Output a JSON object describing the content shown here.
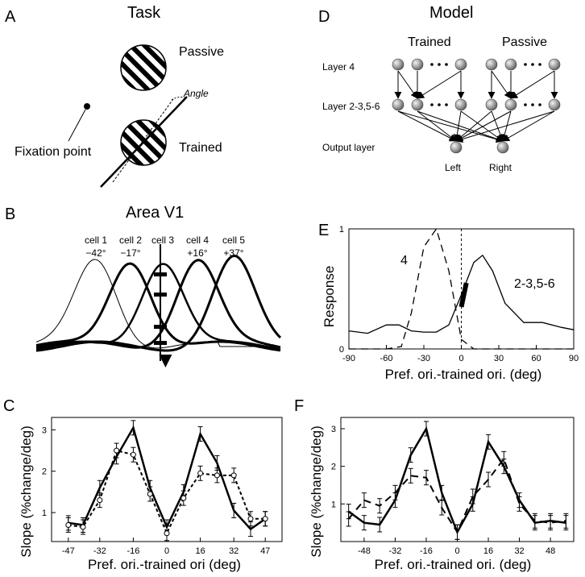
{
  "panels": {
    "A": {
      "letter": "A",
      "title": "Task",
      "passive": "Passive",
      "trained": "Trained",
      "angle": "Angle",
      "fixation": "Fixation point"
    },
    "B": {
      "letter": "B",
      "title": "Area V1",
      "cells": [
        {
          "name": "cell 1",
          "angle": "−42°"
        },
        {
          "name": "cell 2",
          "angle": "−17°"
        },
        {
          "name": "cell 3",
          "angle": ""
        },
        {
          "name": "cell 4",
          "angle": "+16°"
        },
        {
          "name": "cell 5",
          "angle": "+37°"
        }
      ]
    },
    "D": {
      "letter": "D",
      "title": "Model",
      "trained": "Trained",
      "passive": "Passive",
      "layer4": "Layer 4",
      "layer23": "Layer 2-3,5-6",
      "output": "Output layer",
      "left": "Left",
      "right": "Right"
    },
    "E": {
      "letter": "E",
      "ylabel": "Response",
      "xlabel": "Pref. ori.-trained ori. (deg)",
      "curve4": "4",
      "curve23": "2-3,5-6"
    },
    "C": {
      "letter": "C",
      "ylabel": "Slope (%change/deg)",
      "xlabel": "Pref. ori.-trained ori (deg)"
    },
    "F": {
      "letter": "F",
      "ylabel": "Slope (%change/deg)",
      "xlabel": "Pref. ori.-trained ori. (deg)"
    }
  },
  "chart_data": [
    {
      "type": "line",
      "panel": "E",
      "xlim": [
        -90,
        90
      ],
      "ylim": [
        0,
        1
      ],
      "xticks": [
        "-90",
        "-60",
        "-30",
        "0",
        "30",
        "60",
        "90"
      ],
      "yticks": [
        "0",
        "1"
      ],
      "series": [
        {
          "name": "4",
          "style": "dashed",
          "x": [
            -90,
            -60,
            -48,
            -40,
            -30,
            -20,
            -10,
            0,
            10,
            20,
            90
          ],
          "y": [
            0,
            0,
            0.02,
            0.3,
            0.85,
            1.0,
            0.65,
            0.08,
            0,
            0,
            0
          ]
        },
        {
          "name": "2-3,5-6",
          "style": "solid",
          "x": [
            -90,
            -75,
            -60,
            -50,
            -40,
            -30,
            -20,
            -10,
            0,
            10,
            17,
            25,
            35,
            50,
            65,
            80,
            90
          ],
          "y": [
            0.15,
            0.13,
            0.2,
            0.2,
            0.15,
            0.14,
            0.14,
            0.2,
            0.45,
            0.72,
            0.78,
            0.65,
            0.38,
            0.22,
            0.22,
            0.18,
            0.16
          ]
        }
      ]
    },
    {
      "type": "line",
      "panel": "C",
      "xlim": [
        -55,
        55
      ],
      "ylim": [
        0.3,
        3.3
      ],
      "xticks": [
        "-47",
        "-32",
        "-16",
        "0",
        "16",
        "32",
        "47"
      ],
      "yticks": [
        "1",
        "2",
        "3"
      ],
      "series": [
        {
          "style": "solid",
          "x": [
            -47,
            -40,
            -32,
            -24,
            -16,
            -8,
            0,
            8,
            16,
            24,
            32,
            40,
            47
          ],
          "y": [
            0.75,
            0.7,
            1.6,
            2.35,
            3.05,
            1.6,
            0.65,
            1.5,
            2.9,
            2.2,
            1.05,
            0.6,
            0.85
          ]
        },
        {
          "style": "dashed",
          "x": [
            -47,
            -40,
            -32,
            -24,
            -16,
            -8,
            0,
            8,
            16,
            24,
            32,
            40,
            47
          ],
          "y": [
            0.7,
            0.65,
            1.3,
            2.5,
            2.4,
            1.45,
            0.5,
            1.35,
            1.95,
            1.9,
            1.9,
            0.85,
            0.85
          ]
        }
      ]
    },
    {
      "type": "line",
      "panel": "F",
      "xlim": [
        -60,
        60
      ],
      "ylim": [
        0,
        3.3
      ],
      "xticks": [
        "-48",
        "-32",
        "-16",
        "0",
        "16",
        "32",
        "48"
      ],
      "yticks": [
        "1",
        "2",
        "3"
      ],
      "series": [
        {
          "style": "solid",
          "x": [
            -56,
            -48,
            -40,
            -32,
            -24,
            -16,
            -8,
            0,
            8,
            16,
            24,
            32,
            40,
            48,
            56
          ],
          "y": [
            0.8,
            0.5,
            0.45,
            1.1,
            2.3,
            3.0,
            1.3,
            0.25,
            1.0,
            2.65,
            2.0,
            1.1,
            0.5,
            0.55,
            0.5
          ]
        },
        {
          "style": "dashed",
          "x": [
            -56,
            -48,
            -40,
            -32,
            -24,
            -16,
            -8,
            0,
            8,
            16,
            24,
            32,
            40,
            48,
            56
          ],
          "y": [
            0.6,
            1.1,
            0.95,
            1.3,
            1.75,
            1.7,
            0.9,
            0.25,
            1.2,
            1.65,
            2.2,
            1.0,
            0.55,
            0.5,
            0.55
          ]
        }
      ]
    }
  ]
}
